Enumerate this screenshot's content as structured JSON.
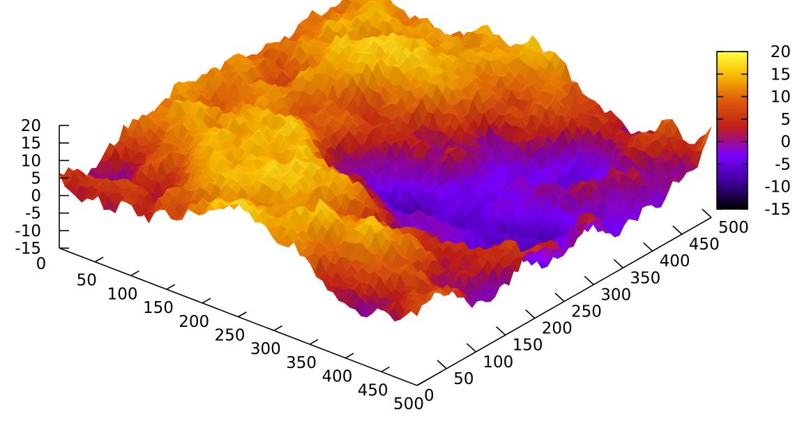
{
  "chart_data": {
    "type": "surface",
    "title": "",
    "xlabel": "",
    "ylabel": "",
    "zlabel": "",
    "x_ticks": [
      "0",
      "50",
      "100",
      "150",
      "200",
      "250",
      "300",
      "350",
      "400",
      "450",
      "500"
    ],
    "y_ticks": [
      "0",
      "50",
      "100",
      "150",
      "200",
      "250",
      "300",
      "350",
      "400",
      "450",
      "500"
    ],
    "z_ticks": [
      "-15",
      "-10",
      "-5",
      "0",
      "5",
      "10",
      "15",
      "20"
    ],
    "colorbar_ticks": [
      "-15",
      "-10",
      "-5",
      "0",
      "5",
      "10",
      "15",
      "20"
    ],
    "xlim": [
      0,
      500
    ],
    "ylim": [
      0,
      500
    ],
    "zlim": [
      -15,
      20
    ],
    "colormap": "gnuplot default (black-purple-red-orange-yellow)",
    "palette_colors": [
      "#000000",
      "#3a0090",
      "#7a00ff",
      "#c01e18",
      "#e0600a",
      "#f8c000",
      "#ffff40"
    ],
    "legend": "colorbar right",
    "grid": false,
    "description_values": {
      "surface_kind": "fractal terrain (random heightfield)",
      "z_typical_range": [
        -10,
        20
      ]
    }
  }
}
